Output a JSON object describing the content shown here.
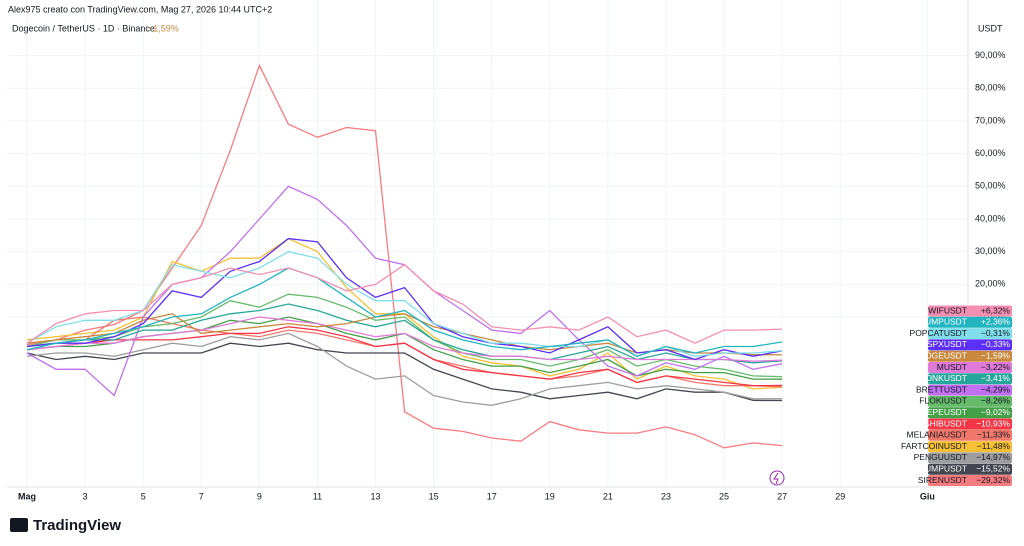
{
  "header": {
    "credit": "Alex975 creato con TradingView.com, Mag 27, 2026 10:44 UTC+2",
    "symbol": "Dogecoin / TetherUS · 1D · Binance",
    "change": "−1,59%"
  },
  "logo": "TradingView",
  "chart_data": {
    "type": "line",
    "y_axis_title": "USDT",
    "x": [
      1,
      2,
      3,
      4,
      5,
      6,
      7,
      8,
      9,
      10,
      11,
      12,
      13,
      14,
      15,
      16,
      17,
      18,
      19,
      20,
      21,
      22,
      23,
      24,
      25,
      26,
      27
    ],
    "xlim": [
      0.31,
      33.4
    ],
    "xticks": [
      {
        "value": 1,
        "label": "Mag"
      },
      3,
      5,
      7,
      9,
      11,
      13,
      15,
      17,
      19,
      21,
      23,
      25,
      27,
      29,
      {
        "value": 32,
        "label": "Giu"
      }
    ],
    "ylim": [
      -42,
      107
    ],
    "yticks": [
      {
        "value": 10,
        "label": "10,00%"
      },
      {
        "value": 20,
        "label": "20,00%"
      },
      {
        "value": 30,
        "label": "30,00%"
      },
      {
        "value": 40,
        "label": "40,00%"
      },
      {
        "value": 50,
        "label": "50,00%"
      },
      {
        "value": 60,
        "label": "60,00%"
      },
      {
        "value": 70,
        "label": "70,00%"
      },
      {
        "value": 80,
        "label": "80,00%"
      },
      {
        "value": 90,
        "label": "90,00%"
      }
    ],
    "grid": true,
    "series": [
      {
        "name": "WIFUSDT",
        "color": "#f48fb1",
        "last_label": "+6,32%",
        "values": [
          2,
          8,
          11,
          12,
          12,
          20,
          22,
          25,
          23,
          25,
          22,
          18,
          20,
          26,
          18,
          14,
          7,
          6,
          7,
          6,
          10,
          4,
          6,
          2,
          6,
          6,
          6.32
        ]
      },
      {
        "name": "PUMPUSDT",
        "color": "#22b5bf",
        "last_label": "+2,36%",
        "values": [
          0,
          2,
          3,
          5,
          7,
          10,
          11,
          16,
          20,
          25,
          22,
          16,
          10,
          12,
          6,
          3,
          1,
          0,
          1,
          2,
          3,
          -2,
          1,
          -1,
          1,
          1,
          2.36
        ]
      },
      {
        "name": "POPCATUSDT",
        "color": "#80deea",
        "last_label": "−0,31%",
        "values": [
          2,
          7,
          9,
          9,
          12,
          26,
          24,
          22,
          25,
          30,
          28,
          20,
          15,
          15,
          8,
          5,
          2,
          2,
          1,
          1,
          3,
          -2,
          1,
          -2,
          -1,
          -1,
          -0.31
        ]
      },
      {
        "name": "SPXUSDT",
        "color": "#5b2ff5",
        "last_label": "−0,33%",
        "values": [
          1,
          2,
          2,
          4,
          8,
          18,
          16,
          24,
          27,
          34,
          33,
          22,
          16,
          19,
          8,
          4,
          2,
          1,
          -1,
          3,
          7,
          -1,
          0,
          -3,
          0,
          -2,
          -0.33
        ]
      },
      {
        "name": "DOGEUSDT",
        "color": "#c8893e",
        "last_label": "−1,59%",
        "values": [
          2,
          3,
          4,
          5,
          9,
          11,
          5,
          6,
          7,
          8,
          7,
          8,
          10,
          11,
          7,
          5,
          3,
          1,
          0,
          1,
          2,
          -1,
          0,
          -1,
          -1,
          -1.5,
          -1.59
        ]
      },
      {
        "name": "MUSDT",
        "color": "#e07ad8",
        "last_label": "−3,22%",
        "values": [
          0,
          1,
          2,
          2,
          4,
          5,
          6,
          8,
          10,
          9,
          8,
          6,
          4,
          5,
          1,
          -1,
          -2,
          -2,
          -3,
          -3,
          -2,
          -3,
          -3,
          -3,
          -3,
          -3.5,
          -3.22
        ]
      },
      {
        "name": "BONKUSDT",
        "color": "#26a69a",
        "last_label": "−3,41%",
        "values": [
          1,
          2,
          3,
          3,
          6,
          6,
          9,
          11,
          12,
          14,
          12,
          9,
          7,
          9,
          3,
          0,
          -2,
          -2,
          -3,
          -1,
          1,
          -3,
          -1,
          -3,
          -3,
          -4,
          -3.41
        ]
      },
      {
        "name": "BRETTUSDT",
        "color": "#c070f0",
        "last_label": "−4,29%",
        "values": [
          -1,
          -6,
          -6,
          -14,
          10,
          20,
          22,
          30,
          40,
          50,
          46,
          38,
          28,
          26,
          18,
          12,
          6,
          5,
          12,
          3,
          -5,
          -8,
          -4,
          -6,
          -2,
          -6,
          -4.29
        ]
      },
      {
        "name": "FLOKIUSDT",
        "color": "#66bb6a",
        "last_label": "−8,26%",
        "values": [
          1,
          3,
          3,
          4,
          7,
          8,
          10,
          15,
          13,
          17,
          16,
          13,
          9,
          10,
          3,
          -1,
          -3,
          -3,
          -5,
          -3,
          0,
          -5,
          -3,
          -5,
          -6,
          -8,
          -8.26
        ]
      },
      {
        "name": "PEPEUSDT",
        "color": "#43a047",
        "last_label": "−9,02%",
        "values": [
          0,
          1,
          1,
          2,
          4,
          5,
          6,
          9,
          8,
          10,
          8,
          5,
          3,
          5,
          0,
          -3,
          -5,
          -5,
          -7,
          -5,
          -3,
          -8,
          -6,
          -7,
          -7,
          -9,
          -9.02
        ]
      },
      {
        "name": "SHIBUSDT",
        "color": "#f23645",
        "last_label": "−10,93%",
        "values": [
          0,
          1,
          2,
          3,
          3,
          3,
          4,
          5,
          5,
          7,
          6,
          4,
          1,
          2,
          -3,
          -6,
          -7,
          -8,
          -9,
          -7,
          -6,
          -10,
          -8,
          -9,
          -10,
          -11,
          -10.93
        ]
      },
      {
        "name": "MELANIAUSDT",
        "color": "#f0786a",
        "last_label": "−11,33%",
        "values": [
          1,
          2,
          3,
          9,
          10,
          8,
          6,
          5,
          4,
          6,
          5,
          3,
          1,
          2,
          -3,
          -5,
          -7,
          -8,
          -9,
          -8,
          -6,
          -10,
          -8,
          -10,
          -11,
          -11,
          -11.33
        ]
      },
      {
        "name": "FARTCOINUSDT",
        "color": "#f5c033",
        "last_label": "−11,48%",
        "values": [
          3,
          4,
          5,
          6,
          10,
          27,
          24,
          28,
          28,
          34,
          30,
          19,
          11,
          11,
          4,
          -2,
          -4,
          -5,
          -8,
          -6,
          -1,
          -9,
          -5,
          -8,
          -9,
          -12,
          -11.48
        ]
      },
      {
        "name": "PENGUUSDT",
        "color": "#9e9e9e",
        "last_label": "−14,97%",
        "values": [
          -2,
          -1,
          -1,
          -2,
          0,
          2,
          1,
          4,
          3,
          5,
          1,
          -5,
          -9,
          -8,
          -14,
          -16,
          -17,
          -15,
          -12,
          -11,
          -10,
          -12,
          -11,
          -12,
          -13,
          -15,
          -14.97
        ]
      },
      {
        "name": "TRUMPUSDT",
        "color": "#434651",
        "last_label": "−15,52%",
        "values": [
          -1,
          -3,
          -2,
          -3,
          -1,
          -1,
          -1,
          2,
          1,
          2,
          0,
          -1,
          -1,
          -1,
          -6,
          -9,
          -12,
          -13,
          -15,
          -14,
          -13,
          -15,
          -12,
          -13,
          -13,
          -15.5,
          -15.52
        ]
      },
      {
        "name": "SIRENUSDT",
        "color": "#f77c80",
        "last_label": "−29,32%",
        "values": [
          1.5,
          3,
          6,
          7.7,
          12,
          25,
          38,
          61,
          87,
          69,
          65,
          68,
          67,
          -19,
          -24,
          -25,
          -27,
          -28,
          -22,
          -24.5,
          -25.5,
          -25.5,
          -23.6,
          -26,
          -30,
          -28.5,
          -29.32
        ]
      }
    ]
  }
}
